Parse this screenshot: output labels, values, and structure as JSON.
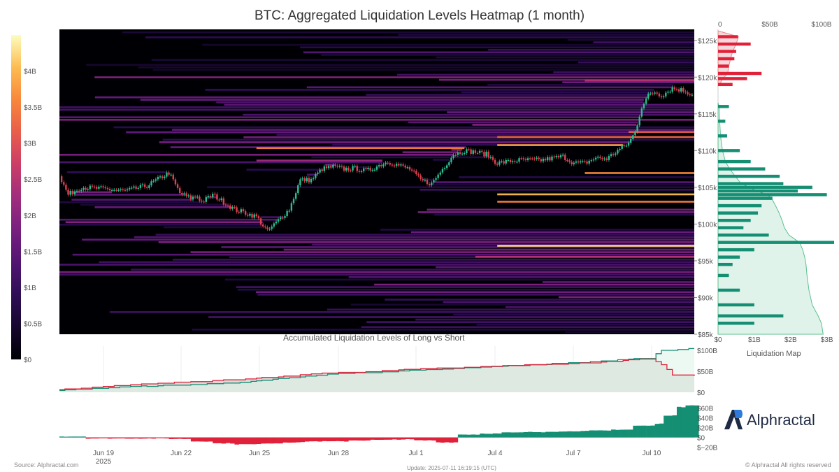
{
  "page": {
    "title": "BTC: Aggregated Liquidation Levels Heatmap (1 month)",
    "source": "Source: Alphractal.com",
    "update": "Update: 2025-07-11 16:19:15 (UTC)",
    "copyright": "© Alphractal All rights reserved",
    "brand": "Alphractal",
    "liq_map_label": "Liquidation Map"
  },
  "colors": {
    "heat_bg": "#000004",
    "long_green": "#158f73",
    "short_red": "#e0213a",
    "area_fill": "#dcdad8",
    "cum_fill_green": "#dff3ea"
  },
  "chart_data": [
    {
      "type": "heatmap",
      "title": "BTC: Aggregated Liquidation Levels Heatmap (1 month)",
      "x_ticks": [
        "Jun 19\n2025",
        "Jun 22",
        "Jun 25",
        "Jun 28",
        "Jul 1",
        "Jul 4",
        "Jul 7",
        "Jul 10"
      ],
      "y_ticks": [
        "$85k",
        "$90k",
        "$95k",
        "$100k",
        "$105k",
        "$110k",
        "$115k",
        "$120k",
        "$125k"
      ],
      "ylim": [
        85000,
        126500
      ],
      "colorbar_ticks": [
        "$0",
        "$0.5B",
        "$1B",
        "$1.5B",
        "$2B",
        "$2.5B",
        "$3B",
        "$3.5B",
        "$4B"
      ],
      "colorbar_range": [
        0,
        4.5
      ],
      "price_series": {
        "name": "BTC price",
        "t": [
          0,
          0.4,
          1,
          2,
          3,
          4,
          5,
          5.5,
          6,
          6.3,
          6.5,
          7,
          8,
          9,
          9.5,
          10,
          10.5,
          11,
          11.5,
          12,
          12.5,
          13,
          13.5,
          14,
          15,
          16,
          16.5,
          17,
          18,
          18.5,
          19,
          19.5,
          20,
          20.5,
          21,
          22,
          23,
          23.5,
          24,
          24.5,
          25,
          25.5,
          26,
          26.3,
          26.6,
          26.9,
          27.2,
          27.5,
          28,
          28.5,
          29
        ],
        "price": [
          106500,
          104000,
          105000,
          104800,
          104500,
          105200,
          107000,
          104200,
          103500,
          103800,
          103000,
          104000,
          102000,
          101000,
          99000,
          100500,
          102000,
          106000,
          106000,
          107500,
          107800,
          107500,
          107600,
          107200,
          108500,
          107500,
          106000,
          105500,
          109500,
          110000,
          109800,
          109500,
          108300,
          108500,
          108700,
          108700,
          109200,
          108300,
          108300,
          109000,
          108900,
          110000,
          111000,
          112500,
          116000,
          117500,
          118000,
          117500,
          118500,
          118200,
          117500
        ]
      },
      "liquidation_map": {
        "x_ticks_top": [
          "0",
          "$50B",
          "$100B"
        ],
        "x_ticks_bottom": [
          "$0",
          "$1B",
          "$2B",
          "$3B"
        ],
        "short_bars_billion": [
          [
            125500,
            0.55
          ],
          [
            124500,
            0.9
          ],
          [
            123500,
            0.5
          ],
          [
            122500,
            0.45
          ],
          [
            121500,
            0.3
          ],
          [
            120500,
            1.2
          ],
          [
            119800,
            0.8
          ],
          [
            119000,
            0.4
          ]
        ],
        "long_bars_billion": [
          [
            116000,
            0.3
          ],
          [
            114000,
            0.2
          ],
          [
            112000,
            0.25
          ],
          [
            110000,
            0.6
          ],
          [
            108500,
            0.9
          ],
          [
            107500,
            1.3
          ],
          [
            106500,
            1.7
          ],
          [
            105500,
            1.8
          ],
          [
            105000,
            2.6
          ],
          [
            104500,
            2.2
          ],
          [
            104000,
            3.0
          ],
          [
            103500,
            1.5
          ],
          [
            102500,
            1.2
          ],
          [
            101500,
            1.1
          ],
          [
            100500,
            0.9
          ],
          [
            99500,
            0.7
          ],
          [
            98500,
            1.4
          ],
          [
            97500,
            3.2
          ],
          [
            96500,
            1.0
          ],
          [
            95500,
            0.6
          ],
          [
            94500,
            0.4
          ],
          [
            93000,
            0.3
          ],
          [
            91000,
            0.6
          ],
          [
            89000,
            1.0
          ],
          [
            87500,
            1.8
          ],
          [
            86500,
            1.0
          ]
        ]
      }
    },
    {
      "type": "line",
      "title": "Accumulated Liquidation Levels of Long vs Short",
      "x": [
        0,
        4,
        8,
        12,
        16,
        20,
        24,
        27,
        27.5,
        28,
        29
      ],
      "y_ticks": [
        "$0",
        "$50B",
        "$100B"
      ],
      "ylim": [
        0,
        110
      ],
      "series": [
        {
          "name": "Long",
          "values": [
            5,
            15,
            22,
            42,
            52,
            62,
            72,
            82,
            100,
            100,
            105
          ]
        },
        {
          "name": "Short",
          "values": [
            7,
            20,
            30,
            45,
            55,
            62,
            70,
            80,
            65,
            42,
            40
          ]
        }
      ]
    },
    {
      "type": "bar",
      "y_ticks": [
        "$−20B",
        "$0",
        "$20B",
        "$40B",
        "$60B"
      ],
      "ylim": [
        -22,
        68
      ],
      "x": [
        0,
        1,
        2,
        3,
        4,
        5,
        6,
        7,
        8,
        9,
        10,
        11,
        12,
        13,
        14,
        15,
        16,
        17,
        18,
        19,
        20,
        21,
        22,
        23,
        24,
        25,
        26,
        27,
        27.5,
        28,
        28.5,
        29
      ],
      "values": [
        2,
        -2,
        -2,
        -2,
        -2,
        -3,
        -8,
        -12,
        -14,
        -12,
        -10,
        -8,
        -8,
        -6,
        -5,
        -4,
        -6,
        -10,
        6,
        8,
        10,
        11,
        12,
        13,
        14,
        16,
        24,
        28,
        45,
        62,
        66,
        66
      ]
    }
  ]
}
